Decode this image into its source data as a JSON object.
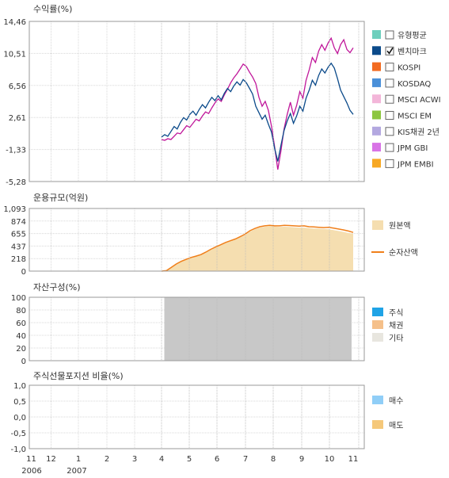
{
  "chart_data": [
    {
      "type": "line",
      "title": "수익률(%)",
      "ylim": [
        -5.28,
        14.46
      ],
      "yticks": [
        "14,46",
        "10,51",
        "6,56",
        "2,61",
        "-1,33",
        "-5,28"
      ],
      "x_start": 4.0,
      "x_end": 11.5,
      "series": [
        {
          "name": "벤치마크",
          "color": "#0b4a8a",
          "values": [
            0.2,
            0.5,
            0.3,
            0.9,
            1.5,
            1.2,
            2.0,
            2.6,
            2.3,
            3.0,
            3.4,
            2.9,
            3.6,
            4.2,
            3.8,
            4.5,
            5.1,
            4.7,
            5.3,
            4.8,
            5.6,
            6.2,
            5.8,
            6.5,
            7.0,
            6.6,
            7.3,
            6.9,
            6.2,
            5.5,
            4.0,
            3.2,
            2.4,
            2.9,
            1.8,
            0.8,
            -1.2,
            -2.8,
            -0.8,
            1.0,
            2.2,
            3.1,
            1.9,
            2.8,
            4.0,
            3.4,
            5.0,
            6.0,
            7.2,
            6.6,
            7.8,
            8.6,
            8.1,
            8.8,
            9.3,
            8.7,
            7.4,
            6.0,
            5.2,
            4.4,
            3.5,
            3.0
          ]
        },
        {
          "name": "유형평균",
          "color": "#c0169a",
          "values": [
            -0.1,
            -0.2,
            0.0,
            -0.1,
            0.3,
            0.7,
            0.6,
            1.1,
            1.6,
            1.4,
            1.9,
            2.4,
            2.2,
            2.8,
            3.3,
            3.1,
            3.8,
            4.4,
            4.9,
            4.6,
            5.4,
            6.1,
            6.9,
            7.5,
            8.0,
            8.6,
            9.2,
            8.9,
            8.2,
            7.6,
            6.8,
            5.1,
            4.0,
            4.6,
            3.5,
            1.5,
            -1.0,
            -3.8,
            -1.5,
            1.2,
            3.0,
            4.5,
            2.9,
            4.1,
            5.8,
            5.0,
            7.2,
            8.5,
            10.0,
            9.4,
            10.8,
            11.6,
            10.9,
            11.8,
            12.4,
            11.2,
            10.5,
            11.6,
            12.2,
            11.0,
            10.6,
            11.2
          ]
        }
      ],
      "legend": [
        {
          "label": "유형평균",
          "color": "#6ecfbd",
          "checked": false
        },
        {
          "label": "벤치마크",
          "color": "#0b4a8a",
          "checked": true
        },
        {
          "label": "KOSPI",
          "color": "#f26b21",
          "checked": false
        },
        {
          "label": "KOSDAQ",
          "color": "#4a90d9",
          "checked": false
        },
        {
          "label": "MSCI ACWI",
          "color": "#f3b6d9",
          "checked": false
        },
        {
          "label": "MSCI EM",
          "color": "#8cc63f",
          "checked": false
        },
        {
          "label": "KIS채권 2년",
          "color": "#b3a8e0",
          "checked": false
        },
        {
          "label": "JPM GBI",
          "color": "#d873e6",
          "checked": false
        },
        {
          "label": "JPM EMBI",
          "color": "#f7a823",
          "checked": false
        }
      ]
    },
    {
      "type": "area",
      "title": "운용규모(억원)",
      "ylim": [
        0,
        1093
      ],
      "yticks": [
        "1,093",
        "874",
        "655",
        "437",
        "218",
        "0"
      ],
      "x_start": 4.0,
      "x_end": 11.5,
      "series": [
        {
          "name": "원본액",
          "color": "#f5deb0",
          "values": [
            0,
            5,
            60,
            120,
            165,
            200,
            230,
            255,
            280,
            320,
            370,
            410,
            450,
            490,
            520,
            550,
            590,
            630,
            690,
            730,
            760,
            775,
            785,
            780,
            770,
            775,
            770,
            765,
            760,
            760,
            750,
            745,
            740,
            735,
            730,
            715,
            700,
            685,
            665,
            650
          ]
        },
        {
          "name": "순자산액",
          "color": "#f07f1a",
          "values": [
            0,
            8,
            65,
            125,
            170,
            205,
            238,
            262,
            288,
            330,
            380,
            420,
            460,
            500,
            530,
            560,
            600,
            645,
            705,
            745,
            775,
            790,
            800,
            790,
            790,
            800,
            795,
            790,
            785,
            790,
            775,
            770,
            765,
            760,
            765,
            750,
            735,
            720,
            700,
            675
          ]
        }
      ]
    },
    {
      "type": "area",
      "title": "자산구성(%)",
      "ylim": [
        0,
        100
      ],
      "yticks": [
        "100",
        "80",
        "60",
        "40",
        "20",
        "0"
      ],
      "x_start": 4.1,
      "x_end": 11.5,
      "series": [
        {
          "name": "주식",
          "color": "#1fa3e6",
          "value": 0
        },
        {
          "name": "채권",
          "color": "#f5c08a",
          "value": 0
        },
        {
          "name": "기타",
          "color": "#c8c8c8",
          "value": 100
        }
      ],
      "legend": [
        {
          "label": "주식",
          "color": "#1fa3e6"
        },
        {
          "label": "채권",
          "color": "#f5c08a"
        },
        {
          "label": "기타",
          "color": "#e8e6df"
        }
      ]
    },
    {
      "type": "bar",
      "title": "주식선물포지션 비율(%)",
      "ylim": [
        -1.0,
        1.0
      ],
      "yticks": [
        "1,0",
        "0,5",
        "0,0",
        "-0,5",
        "-1,0"
      ],
      "series": [
        {
          "name": "매수",
          "color": "#90cef7",
          "values": []
        },
        {
          "name": "매도",
          "color": "#f5c87a",
          "values": []
        }
      ]
    }
  ],
  "x_axis": {
    "months": [
      "11",
      "12",
      "1",
      "2",
      "3",
      "4",
      "5",
      "6",
      "7",
      "8",
      "9",
      "10",
      "11"
    ],
    "years": [
      "2006",
      "2007"
    ]
  }
}
